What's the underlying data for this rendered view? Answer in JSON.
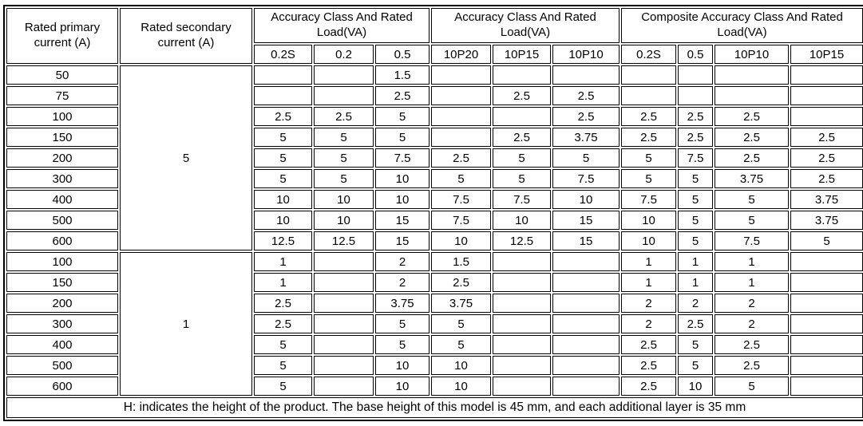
{
  "table": {
    "header": {
      "primary": "Rated primary current (A)",
      "secondary": "Rated secondary current (A)",
      "group1": "Accuracy Class And Rated Load(VA)",
      "group2": "Accuracy Class And Rated Load(VA)",
      "group3": "Composite Accuracy Class And Rated Load(VA)",
      "subcols": [
        "0.2S",
        "0.2",
        "0.5",
        "10P20",
        "10P15",
        "10P10",
        "0.2S",
        "0.5",
        "10P10",
        "10P15"
      ]
    },
    "sections": [
      {
        "secondary": "5",
        "rows": [
          {
            "primary": "50",
            "values": [
              "",
              "",
              "1.5",
              "",
              "",
              "",
              "",
              "",
              "",
              ""
            ]
          },
          {
            "primary": "75",
            "values": [
              "",
              "",
              "2.5",
              "",
              "2.5",
              "2.5",
              "",
              "",
              "",
              ""
            ]
          },
          {
            "primary": "100",
            "values": [
              "2.5",
              "2.5",
              "5",
              "",
              "",
              "2.5",
              "2.5",
              "2.5",
              "2.5",
              ""
            ]
          },
          {
            "primary": "150",
            "values": [
              "5",
              "5",
              "5",
              "",
              "2.5",
              "3.75",
              "2.5",
              "2.5",
              "2.5",
              "2.5"
            ]
          },
          {
            "primary": "200",
            "values": [
              "5",
              "5",
              "7.5",
              "2.5",
              "5",
              "5",
              "5",
              "7.5",
              "2.5",
              "2.5"
            ]
          },
          {
            "primary": "300",
            "values": [
              "5",
              "5",
              "10",
              "5",
              "5",
              "7.5",
              "5",
              "5",
              "3.75",
              "2.5"
            ]
          },
          {
            "primary": "400",
            "values": [
              "10",
              "10",
              "10",
              "7.5",
              "7.5",
              "10",
              "7.5",
              "5",
              "5",
              "3.75"
            ]
          },
          {
            "primary": "500",
            "values": [
              "10",
              "10",
              "15",
              "7.5",
              "10",
              "15",
              "10",
              "5",
              "5",
              "3.75"
            ]
          },
          {
            "primary": "600",
            "values": [
              "12.5",
              "12.5",
              "15",
              "10",
              "12.5",
              "15",
              "10",
              "5",
              "7.5",
              "5"
            ]
          }
        ]
      },
      {
        "secondary": "1",
        "rows": [
          {
            "primary": "100",
            "values": [
              "1",
              "",
              "2",
              "1.5",
              "",
              "",
              "1",
              "1",
              "1",
              ""
            ]
          },
          {
            "primary": "150",
            "values": [
              "1",
              "",
              "2",
              "2.5",
              "",
              "",
              "1",
              "1",
              "1",
              ""
            ]
          },
          {
            "primary": "200",
            "values": [
              "2.5",
              "",
              "3.75",
              "3.75",
              "",
              "",
              "2",
              "2",
              "2",
              ""
            ]
          },
          {
            "primary": "300",
            "values": [
              "2.5",
              "",
              "5",
              "5",
              "",
              "",
              "2",
              "2.5",
              "2",
              ""
            ]
          },
          {
            "primary": "400",
            "values": [
              "5",
              "",
              "5",
              "5",
              "",
              "",
              "2.5",
              "5",
              "2.5",
              ""
            ]
          },
          {
            "primary": "500",
            "values": [
              "5",
              "",
              "10",
              "10",
              "",
              "",
              "2.5",
              "5",
              "2.5",
              ""
            ]
          },
          {
            "primary": "600",
            "values": [
              "5",
              "",
              "10",
              "10",
              "",
              "",
              "2.5",
              "10",
              "5",
              ""
            ]
          }
        ]
      }
    ],
    "footnote": "H: indicates the height of the product. The base height of this model is 45 mm, and each additional layer is 35 mm"
  }
}
